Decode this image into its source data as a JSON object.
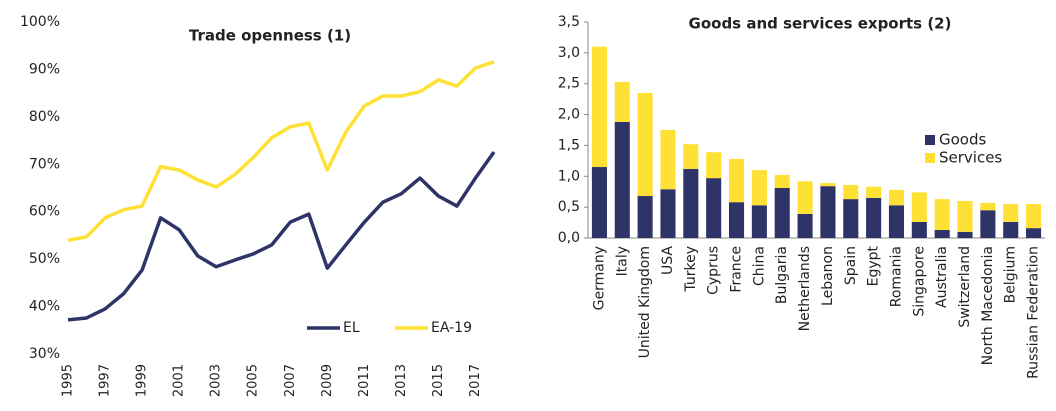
{
  "chart_data": [
    {
      "type": "line",
      "title": "Trade openness (1)",
      "categories": [
        "1995",
        null,
        "1997",
        null,
        "1999",
        null,
        "2001",
        null,
        "2003",
        null,
        "2005",
        null,
        "2007",
        null,
        "2009",
        null,
        "2011",
        null,
        "2013",
        null,
        "2015",
        null,
        "2017",
        null
      ],
      "series": [
        {
          "name": "EL",
          "color": "#2e3468",
          "values": [
            37.2,
            37.6,
            39.5,
            42.7,
            47.7,
            58.7,
            56.2,
            50.7,
            48.4,
            49.8,
            51.1,
            53.0,
            57.8,
            59.5,
            48.1,
            53.0,
            57.8,
            62.0,
            63.8,
            67.1,
            63.3,
            61.2,
            67.1,
            72.6
          ]
        },
        {
          "name": "EA-19",
          "color": "#ffe135",
          "values": [
            54.0,
            54.7,
            58.7,
            60.4,
            61.2,
            69.5,
            68.8,
            66.7,
            65.2,
            67.8,
            71.4,
            75.6,
            77.9,
            78.7,
            68.8,
            76.8,
            82.3,
            84.4,
            84.4,
            85.3,
            87.8,
            86.5,
            90.3,
            91.6
          ]
        }
      ],
      "ylim": [
        30,
        100
      ],
      "yticks": [
        {
          "value": 30,
          "label": "30%"
        },
        {
          "value": 40,
          "label": "40%"
        },
        {
          "value": 50,
          "label": "50%"
        },
        {
          "value": 60,
          "label": "60%"
        },
        {
          "value": 70,
          "label": "70%"
        },
        {
          "value": 80,
          "label": "80%"
        },
        {
          "value": 90,
          "label": "90%"
        },
        {
          "value": 100,
          "label": "100%"
        }
      ],
      "legend": "lower right"
    },
    {
      "type": "bar",
      "title": "Goods and services exports (2)",
      "categories": [
        "Germany",
        "Italy",
        "United Kingdom",
        "USA",
        "Turkey",
        "Cyprus",
        "France",
        "China",
        "Bulgaria",
        "Netherlands",
        "Lebanon",
        "Spain",
        "Egypt",
        "Romania",
        "Singapore",
        "Australia",
        "Switzerland",
        "North Macedonia",
        "Belgium",
        "Russian Federation"
      ],
      "series": [
        {
          "name": "Goods",
          "color": "#2e3468",
          "values": [
            1.15,
            1.88,
            0.68,
            0.79,
            1.12,
            0.97,
            0.58,
            0.53,
            0.81,
            0.39,
            0.84,
            0.63,
            0.65,
            0.53,
            0.26,
            0.13,
            0.1,
            0.45,
            0.26,
            0.16
          ]
        },
        {
          "name": "Services",
          "color": "#ffe135",
          "values": [
            1.95,
            0.65,
            1.67,
            0.96,
            0.4,
            0.42,
            0.7,
            0.57,
            0.21,
            0.53,
            0.05,
            0.23,
            0.18,
            0.25,
            0.48,
            0.5,
            0.5,
            0.12,
            0.29,
            0.39
          ]
        }
      ],
      "stacked": true,
      "ylim": [
        0,
        3.5
      ],
      "yticks": [
        {
          "value": 0,
          "label": "0,0"
        },
        {
          "value": 0.5,
          "label": "0,5"
        },
        {
          "value": 1,
          "label": "1,0"
        },
        {
          "value": 1.5,
          "label": "1,5"
        },
        {
          "value": 2,
          "label": "2,0"
        },
        {
          "value": 2.5,
          "label": "2,5"
        },
        {
          "value": 3,
          "label": "3,0"
        },
        {
          "value": 3.5,
          "label": "3,5"
        }
      ],
      "legend": "center right"
    }
  ]
}
